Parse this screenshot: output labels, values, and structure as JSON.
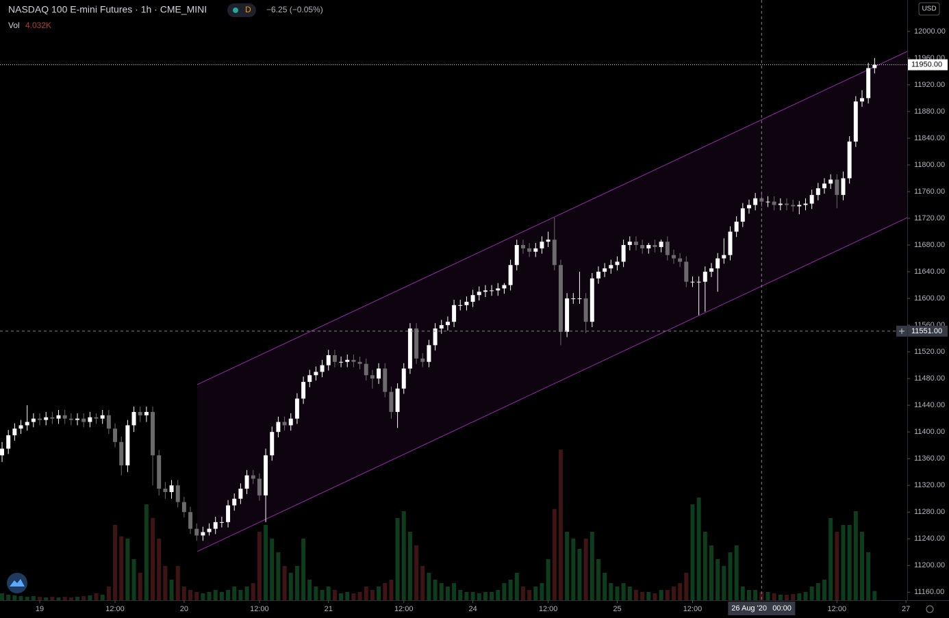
{
  "chart_data": {
    "type": "candlestick",
    "title": "NASDAQ 100 E-mini Futures · 1h · CME_MINI",
    "interval": "D",
    "change": "−6.25 (−0.05%)",
    "volume_name": "Vol",
    "volume_last_label": "4.032K",
    "currency": "USD",
    "up_color": "#ffffff",
    "down_color": "#6b6b6b",
    "volume_up_color": "#0e3d1e",
    "volume_down_color": "#3f1414",
    "channel_color": "#9c27b0",
    "xlim": [
      -0.33,
      144.2
    ],
    "ylim": [
      11148,
      12047
    ],
    "volume_lim": [
      0,
      90000
    ],
    "xticks": [
      {
        "value": 6,
        "label": "19"
      },
      {
        "value": 18,
        "label": "12:00"
      },
      {
        "value": 29,
        "label": "20"
      },
      {
        "value": 41,
        "label": "12:00"
      },
      {
        "value": 52,
        "label": "21"
      },
      {
        "value": 64,
        "label": "12:00"
      },
      {
        "value": 75,
        "label": "24"
      },
      {
        "value": 87,
        "label": "12:00"
      },
      {
        "value": 98,
        "label": "25"
      },
      {
        "value": 110,
        "label": "12:00"
      },
      {
        "value": 133,
        "label": "12:00"
      },
      {
        "value": 144,
        "label": "27"
      }
    ],
    "yticks": [
      {
        "value": 11160,
        "label": "11160.00"
      },
      {
        "value": 11200,
        "label": "11200.00"
      },
      {
        "value": 11240,
        "label": "11240.00"
      },
      {
        "value": 11280,
        "label": "11280.00"
      },
      {
        "value": 11320,
        "label": "11320.00"
      },
      {
        "value": 11360,
        "label": "11360.00"
      },
      {
        "value": 11400,
        "label": "11400.00"
      },
      {
        "value": 11440,
        "label": "11440.00"
      },
      {
        "value": 11480,
        "label": "11480.00"
      },
      {
        "value": 11520,
        "label": "11520.00"
      },
      {
        "value": 11560,
        "label": "11560.00"
      },
      {
        "value": 11600,
        "label": "11600.00"
      },
      {
        "value": 11640,
        "label": "11640.00"
      },
      {
        "value": 11680,
        "label": "11680.00"
      },
      {
        "value": 11720,
        "label": "11720.00"
      },
      {
        "value": 11760,
        "label": "11760.00"
      },
      {
        "value": 11800,
        "label": "11800.00"
      },
      {
        "value": 11840,
        "label": "11840.00"
      },
      {
        "value": 11880,
        "label": "11880.00"
      },
      {
        "value": 11920,
        "label": "11920.00"
      },
      {
        "value": 11960,
        "label": "11960.00"
      },
      {
        "value": 12000,
        "label": "12000.00"
      }
    ],
    "open": [
      11365,
      11375,
      11395,
      11405,
      11410,
      11415,
      11420,
      11418,
      11422,
      11420,
      11425,
      11420,
      11418,
      11420,
      11415,
      11422,
      11420,
      11425,
      11405,
      11385,
      11350,
      11410,
      11430,
      11425,
      11430,
      11365,
      11315,
      11310,
      11320,
      11295,
      11280,
      11255,
      11245,
      11250,
      11255,
      11265,
      11265,
      11290,
      11300,
      11315,
      11335,
      11330,
      11305,
      11365,
      11400,
      11415,
      11410,
      11420,
      11450,
      11475,
      11485,
      11490,
      11500,
      11515,
      11505,
      11505,
      11508,
      11505,
      11502,
      11485,
      11480,
      11495,
      11460,
      11430,
      11465,
      11495,
      11555,
      11510,
      11505,
      11530,
      11555,
      11560,
      11565,
      11590,
      11590,
      11595,
      11605,
      11610,
      11612,
      11612,
      11615,
      11620,
      11650,
      11680,
      11675,
      11670,
      11675,
      11685,
      11688,
      11650,
      11550,
      11600,
      11600,
      11600,
      11565,
      11630,
      11640,
      11645,
      11650,
      11655,
      11680,
      11685,
      11680,
      11675,
      11680,
      11677,
      11685,
      11665,
      11660,
      11655,
      11625,
      11625,
      11625,
      11640,
      11645,
      11660,
      11665,
      11700,
      11715,
      11735,
      11740,
      11750,
      11745,
      11745,
      11740,
      11742,
      11740,
      11738,
      11740,
      11742,
      11755,
      11765,
      11772,
      11778,
      11755,
      11780,
      11835,
      11895,
      11900,
      11945
    ],
    "high": [
      11385,
      11403,
      11413,
      11418,
      11440,
      11428,
      11428,
      11430,
      11430,
      11433,
      11433,
      11428,
      11428,
      11428,
      11430,
      11428,
      11433,
      11433,
      11413,
      11393,
      11418,
      11438,
      11438,
      11438,
      11438,
      11373,
      11325,
      11328,
      11328,
      11303,
      11288,
      11263,
      11258,
      11263,
      11273,
      11273,
      11298,
      11308,
      11323,
      11343,
      11343,
      11338,
      11375,
      11408,
      11423,
      11423,
      11428,
      11458,
      11483,
      11493,
      11498,
      11508,
      11523,
      11523,
      11513,
      11516,
      11516,
      11513,
      11510,
      11493,
      11503,
      11503,
      11468,
      11473,
      11503,
      11563,
      11563,
      11518,
      11538,
      11563,
      11568,
      11573,
      11598,
      11598,
      11603,
      11613,
      11618,
      11620,
      11620,
      11623,
      11623,
      11658,
      11688,
      11688,
      11683,
      11683,
      11693,
      11700,
      11721,
      11658,
      11608,
      11608,
      11640,
      11608,
      11638,
      11648,
      11653,
      11658,
      11663,
      11688,
      11693,
      11693,
      11688,
      11683,
      11688,
      11688,
      11693,
      11673,
      11668,
      11663,
      11633,
      11633,
      11648,
      11653,
      11668,
      11690,
      11708,
      11723,
      11743,
      11748,
      11758,
      11758,
      11753,
      11753,
      11750,
      11750,
      11748,
      11746,
      11750,
      11763,
      11773,
      11780,
      11786,
      11786,
      11790,
      11843,
      11903,
      11912,
      11953,
      11960
    ],
    "low": [
      11355,
      11367,
      11387,
      11397,
      11402,
      11407,
      11410,
      11410,
      11412,
      11412,
      11412,
      11410,
      11410,
      11407,
      11407,
      11412,
      11412,
      11397,
      11377,
      11335,
      11340,
      11400,
      11415,
      11415,
      11320,
      11305,
      11300,
      11300,
      11287,
      11272,
      11247,
      11237,
      11237,
      11245,
      11247,
      11257,
      11257,
      11282,
      11292,
      11307,
      11322,
      11297,
      11265,
      11357,
      11392,
      11402,
      11402,
      11412,
      11442,
      11467,
      11477,
      11482,
      11492,
      11497,
      11497,
      11497,
      11497,
      11494,
      11477,
      11465,
      11472,
      11452,
      11420,
      11406,
      11457,
      11487,
      11502,
      11497,
      11497,
      11522,
      11547,
      11552,
      11557,
      11582,
      11582,
      11587,
      11597,
      11602,
      11604,
      11604,
      11607,
      11612,
      11642,
      11667,
      11662,
      11662,
      11667,
      11677,
      11642,
      11530,
      11542,
      11592,
      11592,
      11548,
      11557,
      11622,
      11632,
      11637,
      11642,
      11647,
      11672,
      11672,
      11667,
      11667,
      11669,
      11669,
      11657,
      11652,
      11647,
      11617,
      11617,
      11575,
      11580,
      11632,
      11610,
      11652,
      11657,
      11692,
      11707,
      11727,
      11732,
      11737,
      11737,
      11732,
      11732,
      11732,
      11730,
      11726,
      11732,
      11734,
      11747,
      11757,
      11764,
      11735,
      11747,
      11772,
      11827,
      11887,
      11892,
      11937
    ],
    "close": [
      11375,
      11395,
      11405,
      11410,
      11415,
      11420,
      11418,
      11422,
      11420,
      11425,
      11420,
      11418,
      11420,
      11415,
      11422,
      11420,
      11425,
      11405,
      11385,
      11350,
      11410,
      11430,
      11425,
      11430,
      11365,
      11315,
      11310,
      11320,
      11295,
      11280,
      11255,
      11245,
      11250,
      11255,
      11265,
      11265,
      11290,
      11300,
      11315,
      11335,
      11330,
      11305,
      11365,
      11400,
      11415,
      11410,
      11420,
      11450,
      11475,
      11485,
      11490,
      11500,
      11515,
      11505,
      11505,
      11508,
      11505,
      11502,
      11485,
      11480,
      11495,
      11460,
      11430,
      11465,
      11495,
      11555,
      11510,
      11505,
      11530,
      11555,
      11560,
      11565,
      11590,
      11590,
      11595,
      11605,
      11610,
      11612,
      11612,
      11615,
      11620,
      11650,
      11680,
      11675,
      11670,
      11675,
      11685,
      11688,
      11650,
      11550,
      11600,
      11600,
      11600,
      11565,
      11630,
      11640,
      11645,
      11650,
      11655,
      11680,
      11685,
      11680,
      11675,
      11680,
      11677,
      11685,
      11665,
      11660,
      11655,
      11625,
      11625,
      11625,
      11640,
      11645,
      11660,
      11665,
      11700,
      11715,
      11735,
      11740,
      11750,
      11745,
      11745,
      11740,
      11742,
      11740,
      11738,
      11740,
      11742,
      11755,
      11765,
      11772,
      11778,
      11755,
      11780,
      11835,
      11895,
      11900,
      11945,
      11950
    ],
    "volume": [
      3000,
      2400,
      2100,
      1800,
      1500,
      1800,
      1500,
      1200,
      1500,
      1200,
      1500,
      1200,
      1500,
      1800,
      2100,
      3000,
      2400,
      6000,
      33000,
      28000,
      27000,
      18000,
      12000,
      42000,
      36000,
      27000,
      15000,
      9000,
      15000,
      6000,
      4500,
      3600,
      3000,
      3600,
      4500,
      3600,
      4500,
      6000,
      4500,
      6000,
      7500,
      30000,
      33000,
      27000,
      21000,
      15000,
      12000,
      15000,
      27000,
      9000,
      6000,
      4500,
      6000,
      4500,
      3000,
      3600,
      3000,
      3600,
      6000,
      4500,
      6000,
      7500,
      9000,
      36000,
      39000,
      30000,
      24000,
      15000,
      12000,
      9000,
      7500,
      6000,
      7500,
      4500,
      3600,
      3600,
      3000,
      3600,
      3600,
      4500,
      7500,
      9000,
      12000,
      6000,
      4500,
      6000,
      7500,
      18000,
      40000,
      66000,
      30000,
      27000,
      22500,
      27000,
      30000,
      18000,
      12000,
      7500,
      6000,
      7500,
      6000,
      4500,
      3600,
      3600,
      3000,
      4500,
      4500,
      6000,
      7500,
      12000,
      42000,
      45000,
      30000,
      24000,
      18000,
      15000,
      21000,
      24000,
      6000,
      4500,
      4500,
      3600,
      3600,
      3000,
      2400,
      2400,
      2700,
      3000,
      3600,
      6000,
      7500,
      9000,
      36000,
      30000,
      33000,
      33000,
      39000,
      30000,
      21000,
      4032
    ],
    "channel": {
      "x": [
        31.1,
        144.2
      ],
      "upper": [
        11471,
        11970
      ],
      "lower": [
        11221,
        11721
      ]
    },
    "last_price": {
      "value": 11950,
      "label": "11950.00"
    },
    "crosshair": {
      "x": 121,
      "y": {
        "value": 11551,
        "label": "11551.00"
      },
      "date_label": "26 Aug '20",
      "time_label": "00:00"
    }
  }
}
